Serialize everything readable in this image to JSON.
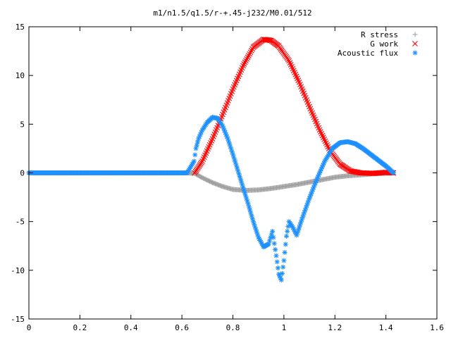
{
  "chart_data": {
    "type": "scatter",
    "title": "m1/n1.5/q1.5/r-+.45-j232/M0.01/512",
    "xlabel": "",
    "ylabel": "",
    "xlim": [
      0,
      1.6
    ],
    "ylim": [
      -15,
      15
    ],
    "x_ticks": [
      "0",
      "0.2",
      "0.4",
      "0.6",
      "0.8",
      "1",
      "1.2",
      "1.4",
      "1.6"
    ],
    "y_ticks": [
      "15",
      "10",
      "5",
      "0",
      "-5",
      "-10",
      "-15"
    ],
    "grid": false,
    "legend_position": "top-right",
    "series": [
      {
        "name": "R stress",
        "marker": "plus",
        "color": "#a0a0a0",
        "x": [
          0,
          0.62,
          0.65,
          0.68,
          0.72,
          0.76,
          0.8,
          0.85,
          0.9,
          0.95,
          1.0,
          1.05,
          1.1,
          1.15,
          1.2,
          1.25,
          1.3,
          1.35,
          1.43
        ],
        "y": [
          0,
          0,
          -0.05,
          -0.5,
          -1.0,
          -1.4,
          -1.7,
          -1.8,
          -1.75,
          -1.6,
          -1.4,
          -1.2,
          -0.95,
          -0.7,
          -0.45,
          -0.3,
          -0.2,
          -0.1,
          0
        ]
      },
      {
        "name": "G work",
        "marker": "cross",
        "color": "#ff0000",
        "x": [
          0.65,
          0.68,
          0.72,
          0.76,
          0.8,
          0.84,
          0.88,
          0.92,
          0.95,
          0.98,
          1.02,
          1.06,
          1.1,
          1.14,
          1.18,
          1.22,
          1.26,
          1.3,
          1.35,
          1.4,
          1.43
        ],
        "y": [
          0,
          1.2,
          3.5,
          6.0,
          8.6,
          11.0,
          12.9,
          13.7,
          13.6,
          13.0,
          11.5,
          9.3,
          6.8,
          4.4,
          2.3,
          0.9,
          0.2,
          0.0,
          -0.05,
          0.05,
          0
        ]
      },
      {
        "name": "Acoustic flux",
        "marker": "star",
        "color": "#1e90ff",
        "x": [
          0,
          0.62,
          0.648,
          0.655,
          0.665,
          0.68,
          0.7,
          0.72,
          0.74,
          0.76,
          0.78,
          0.8,
          0.82,
          0.84,
          0.86,
          0.88,
          0.9,
          0.92,
          0.94,
          0.955,
          0.97,
          0.98,
          0.99,
          1.0,
          1.01,
          1.02,
          1.035,
          1.05,
          1.07,
          1.1,
          1.13,
          1.16,
          1.19,
          1.22,
          1.25,
          1.28,
          1.31,
          1.34,
          1.37,
          1.4,
          1.43
        ],
        "y": [
          0,
          0,
          1.2,
          2.5,
          3.5,
          4.4,
          5.2,
          5.7,
          5.6,
          4.8,
          3.5,
          1.9,
          0.2,
          -1.5,
          -3.2,
          -5.0,
          -6.6,
          -7.6,
          -7.3,
          -6.0,
          -8.5,
          -10.4,
          -11.0,
          -9.0,
          -6.5,
          -5.0,
          -5.6,
          -6.4,
          -4.8,
          -2.6,
          -0.6,
          1.2,
          2.5,
          3.1,
          3.2,
          3.0,
          2.5,
          1.9,
          1.3,
          0.7,
          0
        ]
      }
    ]
  }
}
